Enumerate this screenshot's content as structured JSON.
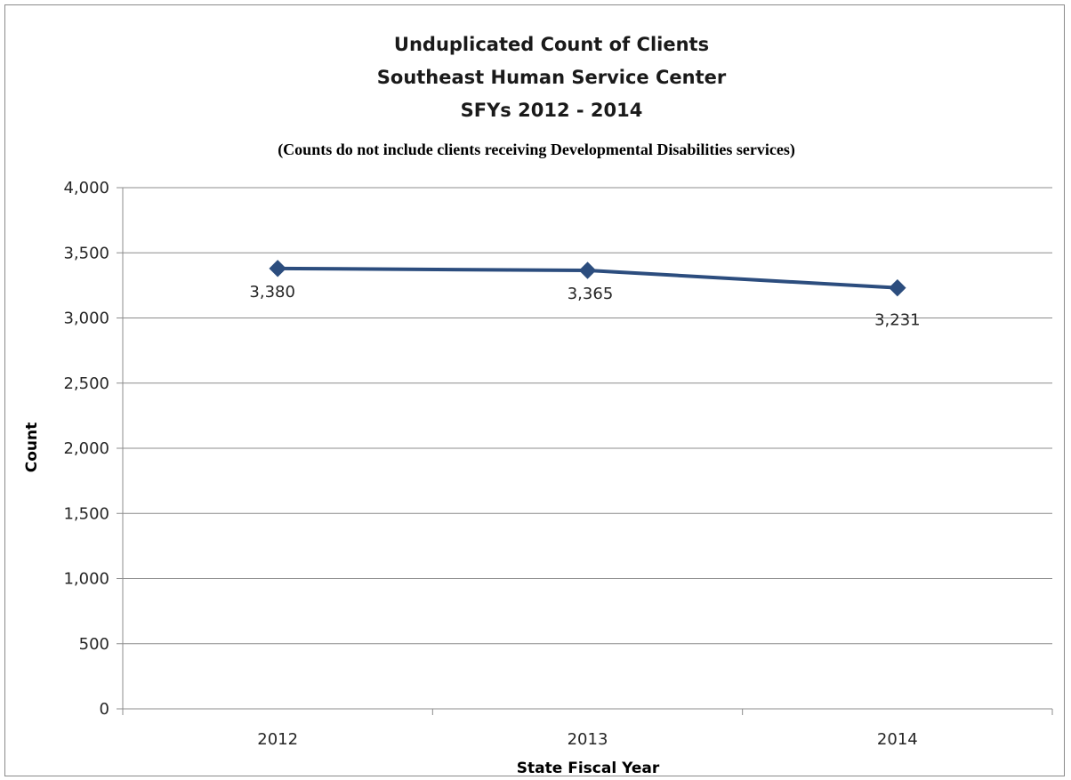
{
  "chart_data": {
    "type": "line",
    "title_lines": [
      "Unduplicated Count of Clients",
      "Southeast Human Service Center",
      "SFYs 2012 - 2014"
    ],
    "subtitle": "(Counts do not include clients receiving Developmental Disabilities services)",
    "xlabel": "State Fiscal Year",
    "ylabel": "Count",
    "categories": [
      "2012",
      "2013",
      "2014"
    ],
    "series": [
      {
        "values": [
          3380,
          3365,
          3231
        ],
        "data_labels": [
          "3,380",
          "3,365",
          "3,231"
        ],
        "color": "#2c4d7e",
        "marker": "diamond"
      }
    ],
    "ylim": [
      0,
      4000
    ],
    "yticks": [
      0,
      500,
      1000,
      1500,
      2000,
      2500,
      3000,
      3500,
      4000
    ],
    "ytick_labels": [
      "0",
      "500",
      "1,000",
      "1,500",
      "2,000",
      "2,500",
      "3,000",
      "3,500",
      "4,000"
    ],
    "grid": "horizontal",
    "legend": "none"
  }
}
